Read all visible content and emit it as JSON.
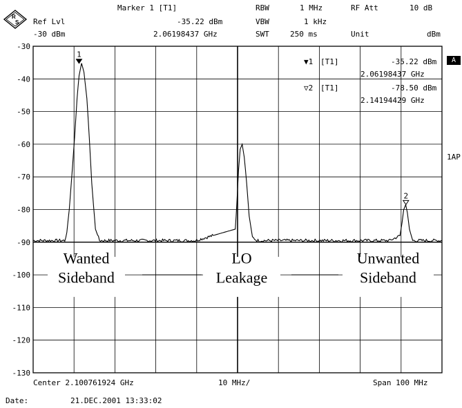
{
  "header": {
    "marker_title": "Marker 1 [T1]",
    "ref_lvl_label": "Ref Lvl",
    "ref_lvl_value": "-30 dBm",
    "marker_level": "-35.22 dBm",
    "marker_freq": "2.06198437 GHz",
    "rbw_label": "RBW",
    "rbw_value": "1 MHz",
    "vbw_label": "VBW",
    "vbw_value": "1 kHz",
    "swt_label": "SWT",
    "swt_value": "250 ms",
    "rf_att_label": "RF Att",
    "rf_att_value": "10 dB",
    "unit_label": "Unit",
    "unit_value": "dBm"
  },
  "side": {
    "a_badge": "A",
    "trace_mode": "1AP"
  },
  "markers_table": [
    {
      "symbol": "▼1",
      "trace": "[T1]",
      "level": "-35.22 dBm",
      "freq": "2.06198437 GHz"
    },
    {
      "symbol": "▽2",
      "trace": "[T1]",
      "level": "-78.50 dBm",
      "freq": "2.14194429 GHz"
    }
  ],
  "footer": {
    "center": "Center 2.100761924 GHz",
    "div": "10 MHz/",
    "span": "Span 100 MHz",
    "date_label": "Date:",
    "date_value": "21.DEC.2001  13:33:02"
  },
  "chart_data": {
    "type": "line",
    "title": "",
    "xlabel": "",
    "ylabel": "",
    "xlim": [
      2050.761924,
      2150.761924
    ],
    "ylim": [
      -130,
      -30
    ],
    "yticks": [
      -30,
      -40,
      -50,
      -60,
      -70,
      -80,
      -90,
      -100,
      -110,
      -120,
      -130
    ],
    "ytick_labels": [
      "-30",
      "-40",
      "-50",
      "-60",
      "-70",
      "-80",
      "-90",
      "-100",
      "-110",
      "-120",
      "-130"
    ],
    "grid": true,
    "reference_line": -90,
    "noise_floor": -89.5,
    "series": [
      {
        "x": [
          2050.76,
          2058.5,
          2059.0,
          2059.6,
          2060.2,
          2060.9,
          2061.5,
          2062.0,
          2062.6,
          2063.2,
          2063.9,
          2064.5,
          2065.1,
          2066.0,
          2067.0,
          2090.5,
          2100.2,
          2100.6,
          2101.0,
          2101.4,
          2101.9,
          2102.4,
          2103.0,
          2103.6,
          2104.4,
          2105.5,
          2138.0,
          2140.5,
          2141.0,
          2141.4,
          2141.9,
          2142.3,
          2142.8,
          2143.6,
          2150.76
        ],
        "y": [
          -89.5,
          -89.5,
          -87.0,
          -80.0,
          -70.0,
          -58.0,
          -46.0,
          -39.0,
          -35.2,
          -38.0,
          -46.0,
          -58.0,
          -72.0,
          -86.0,
          -89.5,
          -89.5,
          -86.0,
          -78.0,
          -68.0,
          -61.5,
          -60.0,
          -64.0,
          -72.0,
          -82.0,
          -88.5,
          -89.5,
          -89.5,
          -88.0,
          -84.0,
          -80.0,
          -78.5,
          -81.0,
          -86.0,
          -89.5,
          -89.5
        ]
      }
    ],
    "markers": [
      {
        "label": "1",
        "x": 2061.98437,
        "y": -35.22,
        "filled": true
      },
      {
        "label": "2",
        "x": 2141.94429,
        "y": -78.5,
        "filled": false
      }
    ],
    "annotations": [
      {
        "lines": [
          "Wanted",
          "Sideband"
        ]
      },
      {
        "lines": [
          "LO",
          "Leakage"
        ]
      },
      {
        "lines": [
          "Unwanted",
          "Sideband"
        ]
      }
    ]
  }
}
